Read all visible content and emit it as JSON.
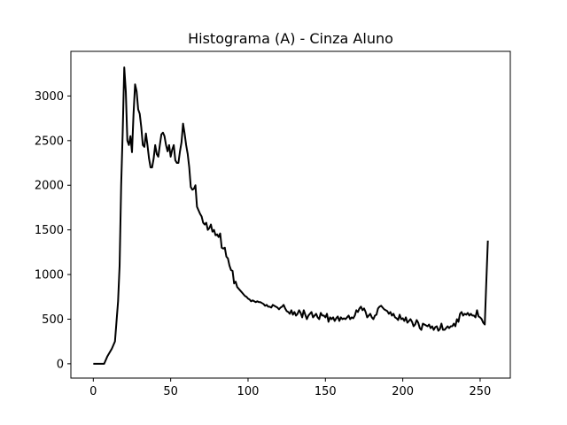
{
  "chart_data": {
    "type": "line",
    "title": "Histograma (A) - Cinza Aluno",
    "xlabel": "",
    "ylabel": "",
    "xlim": [
      -14.5,
      269.5
    ],
    "ylim": [
      -160,
      3500
    ],
    "xticks": [
      0,
      50,
      100,
      150,
      200,
      250
    ],
    "xtick_labels": [
      "0",
      "50",
      "100",
      "150",
      "200",
      "250"
    ],
    "yticks": [
      0,
      500,
      1000,
      1500,
      2000,
      2500,
      3000
    ],
    "ytick_labels": [
      "0",
      "500",
      "1000",
      "1500",
      "2000",
      "2500",
      "3000"
    ],
    "grid": false,
    "line_color": "#000000",
    "series": [
      {
        "name": "",
        "points": [
          [
            0,
            0
          ],
          [
            7,
            0
          ],
          [
            9,
            80
          ],
          [
            12,
            170
          ],
          [
            14,
            250
          ],
          [
            16,
            700
          ],
          [
            17,
            1100
          ],
          [
            18,
            2000
          ],
          [
            19,
            2600
          ],
          [
            20,
            3320
          ],
          [
            21,
            3050
          ],
          [
            22,
            2500
          ],
          [
            23,
            2450
          ],
          [
            24,
            2550
          ],
          [
            25,
            2370
          ],
          [
            26,
            2800
          ],
          [
            27,
            3130
          ],
          [
            28,
            3050
          ],
          [
            29,
            2850
          ],
          [
            30,
            2800
          ],
          [
            31,
            2650
          ],
          [
            32,
            2450
          ],
          [
            33,
            2430
          ],
          [
            34,
            2580
          ],
          [
            35,
            2450
          ],
          [
            36,
            2300
          ],
          [
            37,
            2200
          ],
          [
            38,
            2200
          ],
          [
            39,
            2300
          ],
          [
            40,
            2450
          ],
          [
            41,
            2350
          ],
          [
            42,
            2320
          ],
          [
            43,
            2450
          ],
          [
            44,
            2570
          ],
          [
            45,
            2590
          ],
          [
            46,
            2550
          ],
          [
            47,
            2450
          ],
          [
            48,
            2380
          ],
          [
            49,
            2450
          ],
          [
            50,
            2320
          ],
          [
            51,
            2400
          ],
          [
            52,
            2450
          ],
          [
            53,
            2280
          ],
          [
            54,
            2250
          ],
          [
            55,
            2250
          ],
          [
            56,
            2380
          ],
          [
            57,
            2480
          ],
          [
            58,
            2690
          ],
          [
            59,
            2580
          ],
          [
            60,
            2450
          ],
          [
            61,
            2350
          ],
          [
            62,
            2200
          ],
          [
            63,
            1980
          ],
          [
            64,
            1950
          ],
          [
            65,
            1960
          ],
          [
            66,
            2000
          ],
          [
            67,
            1760
          ],
          [
            68,
            1720
          ],
          [
            69,
            1680
          ],
          [
            70,
            1650
          ],
          [
            71,
            1580
          ],
          [
            72,
            1560
          ],
          [
            73,
            1580
          ],
          [
            74,
            1500
          ],
          [
            75,
            1520
          ],
          [
            76,
            1560
          ],
          [
            77,
            1480
          ],
          [
            78,
            1500
          ],
          [
            79,
            1440
          ],
          [
            80,
            1450
          ],
          [
            81,
            1420
          ],
          [
            82,
            1460
          ],
          [
            83,
            1300
          ],
          [
            84,
            1290
          ],
          [
            85,
            1300
          ],
          [
            86,
            1200
          ],
          [
            87,
            1180
          ],
          [
            88,
            1100
          ],
          [
            89,
            1050
          ],
          [
            90,
            1040
          ],
          [
            91,
            900
          ],
          [
            92,
            920
          ],
          [
            93,
            860
          ],
          [
            94,
            840
          ],
          [
            95,
            820
          ],
          [
            96,
            800
          ],
          [
            97,
            780
          ],
          [
            98,
            760
          ],
          [
            99,
            750
          ],
          [
            100,
            730
          ],
          [
            101,
            720
          ],
          [
            102,
            700
          ],
          [
            103,
            710
          ],
          [
            104,
            700
          ],
          [
            105,
            690
          ],
          [
            106,
            700
          ],
          [
            107,
            690
          ],
          [
            108,
            690
          ],
          [
            109,
            680
          ],
          [
            110,
            670
          ],
          [
            111,
            650
          ],
          [
            112,
            660
          ],
          [
            113,
            640
          ],
          [
            114,
            640
          ],
          [
            115,
            630
          ],
          [
            116,
            660
          ],
          [
            117,
            650
          ],
          [
            118,
            640
          ],
          [
            119,
            630
          ],
          [
            120,
            610
          ],
          [
            121,
            630
          ],
          [
            122,
            640
          ],
          [
            123,
            660
          ],
          [
            124,
            620
          ],
          [
            125,
            590
          ],
          [
            126,
            580
          ],
          [
            127,
            560
          ],
          [
            128,
            600
          ],
          [
            129,
            550
          ],
          [
            130,
            580
          ],
          [
            131,
            540
          ],
          [
            132,
            560
          ],
          [
            133,
            600
          ],
          [
            134,
            570
          ],
          [
            135,
            520
          ],
          [
            136,
            600
          ],
          [
            137,
            550
          ],
          [
            138,
            500
          ],
          [
            139,
            540
          ],
          [
            140,
            560
          ],
          [
            141,
            580
          ],
          [
            142,
            520
          ],
          [
            143,
            540
          ],
          [
            144,
            560
          ],
          [
            145,
            520
          ],
          [
            146,
            500
          ],
          [
            147,
            570
          ],
          [
            148,
            540
          ],
          [
            149,
            540
          ],
          [
            150,
            520
          ],
          [
            151,
            560
          ],
          [
            152,
            470
          ],
          [
            153,
            520
          ],
          [
            154,
            500
          ],
          [
            155,
            520
          ],
          [
            156,
            480
          ],
          [
            157,
            510
          ],
          [
            158,
            530
          ],
          [
            159,
            480
          ],
          [
            160,
            520
          ],
          [
            161,
            500
          ],
          [
            162,
            510
          ],
          [
            163,
            500
          ],
          [
            164,
            520
          ],
          [
            165,
            540
          ],
          [
            166,
            500
          ],
          [
            167,
            520
          ],
          [
            168,
            510
          ],
          [
            169,
            540
          ],
          [
            170,
            600
          ],
          [
            171,
            580
          ],
          [
            172,
            620
          ],
          [
            173,
            640
          ],
          [
            174,
            600
          ],
          [
            175,
            620
          ],
          [
            176,
            580
          ],
          [
            177,
            520
          ],
          [
            178,
            540
          ],
          [
            179,
            560
          ],
          [
            180,
            520
          ],
          [
            181,
            500
          ],
          [
            182,
            540
          ],
          [
            183,
            550
          ],
          [
            184,
            620
          ],
          [
            185,
            640
          ],
          [
            186,
            650
          ],
          [
            187,
            630
          ],
          [
            188,
            610
          ],
          [
            189,
            600
          ],
          [
            190,
            590
          ],
          [
            191,
            560
          ],
          [
            192,
            580
          ],
          [
            193,
            540
          ],
          [
            194,
            560
          ],
          [
            195,
            520
          ],
          [
            196,
            510
          ],
          [
            197,
            490
          ],
          [
            198,
            550
          ],
          [
            199,
            500
          ],
          [
            200,
            510
          ],
          [
            201,
            480
          ],
          [
            202,
            520
          ],
          [
            203,
            460
          ],
          [
            204,
            480
          ],
          [
            205,
            500
          ],
          [
            206,
            470
          ],
          [
            207,
            420
          ],
          [
            208,
            440
          ],
          [
            209,
            490
          ],
          [
            210,
            460
          ],
          [
            211,
            400
          ],
          [
            212,
            380
          ],
          [
            213,
            450
          ],
          [
            214,
            440
          ],
          [
            215,
            430
          ],
          [
            216,
            420
          ],
          [
            217,
            440
          ],
          [
            218,
            400
          ],
          [
            219,
            420
          ],
          [
            220,
            380
          ],
          [
            221,
            410
          ],
          [
            222,
            420
          ],
          [
            223,
            370
          ],
          [
            224,
            390
          ],
          [
            225,
            450
          ],
          [
            226,
            380
          ],
          [
            227,
            380
          ],
          [
            228,
            400
          ],
          [
            229,
            420
          ],
          [
            230,
            400
          ],
          [
            231,
            420
          ],
          [
            232,
            420
          ],
          [
            233,
            450
          ],
          [
            234,
            420
          ],
          [
            235,
            500
          ],
          [
            236,
            470
          ],
          [
            237,
            560
          ],
          [
            238,
            580
          ],
          [
            239,
            540
          ],
          [
            240,
            560
          ],
          [
            241,
            550
          ],
          [
            242,
            570
          ],
          [
            243,
            540
          ],
          [
            244,
            560
          ],
          [
            245,
            540
          ],
          [
            246,
            540
          ],
          [
            247,
            520
          ],
          [
            248,
            600
          ],
          [
            249,
            530
          ],
          [
            250,
            520
          ],
          [
            251,
            500
          ],
          [
            252,
            460
          ],
          [
            253,
            440
          ],
          [
            254,
            920
          ],
          [
            255,
            1380
          ]
        ]
      }
    ]
  }
}
